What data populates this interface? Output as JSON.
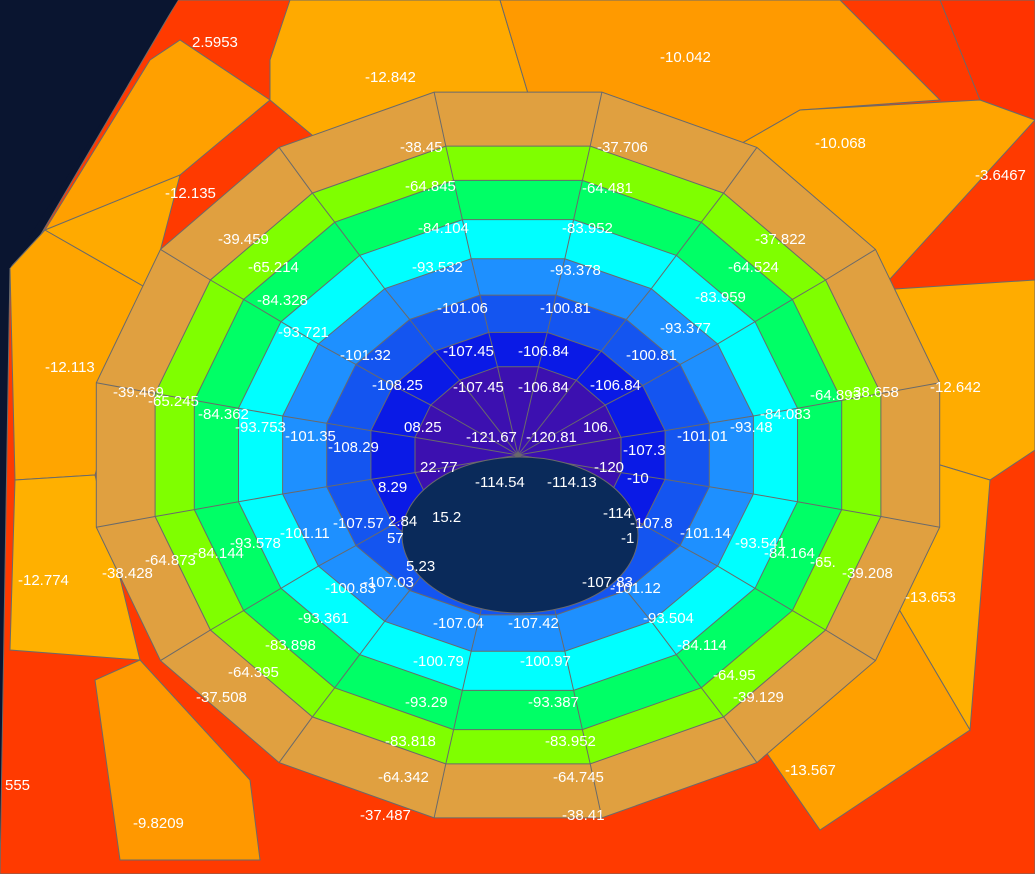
{
  "view": {
    "background_color": "#0a1530",
    "mesh_line_color": "#6a6a6a",
    "label_color": "#ffffff"
  },
  "rings": [
    {
      "id": "ring-1",
      "color": "#e0a040"
    },
    {
      "id": "ring-2",
      "color": "#7fff00"
    },
    {
      "id": "ring-3",
      "color": "#00ff66"
    },
    {
      "id": "ring-4",
      "color": "#00ffff"
    },
    {
      "id": "ring-5",
      "color": "#1e90ff"
    },
    {
      "id": "ring-6",
      "color": "#1455f0"
    },
    {
      "id": "ring-7",
      "color": "#0a1ae6"
    },
    {
      "id": "ring-8",
      "color": "#3c10b0"
    }
  ],
  "labels": [
    {
      "id": "v1",
      "text": "2.5953"
    },
    {
      "id": "v2",
      "text": "-12.842"
    },
    {
      "id": "v3",
      "text": "-10.042"
    },
    {
      "id": "v4",
      "text": "-10.068"
    },
    {
      "id": "v5",
      "text": "-3.6467"
    },
    {
      "id": "v6",
      "text": "-12.135"
    },
    {
      "id": "v7",
      "text": "-12.113"
    },
    {
      "id": "v8",
      "text": "-12.642"
    },
    {
      "id": "v9",
      "text": "-12.774"
    },
    {
      "id": "v10",
      "text": "-13.653"
    },
    {
      "id": "v11",
      "text": "-13.567"
    },
    {
      "id": "v12",
      "text": "-9.8209"
    },
    {
      "id": "v13",
      "text": "555"
    },
    {
      "id": "v14",
      "text": "-38.45"
    },
    {
      "id": "v15",
      "text": "-37.706"
    },
    {
      "id": "v16",
      "text": "-39.459"
    },
    {
      "id": "v17",
      "text": "-37.822"
    },
    {
      "id": "v18",
      "text": "-39.469"
    },
    {
      "id": "v19",
      "text": "-38.658"
    },
    {
      "id": "v20",
      "text": "-38.428"
    },
    {
      "id": "v21",
      "text": "-39.208"
    },
    {
      "id": "v22",
      "text": "-37.508"
    },
    {
      "id": "v23",
      "text": "-39.129"
    },
    {
      "id": "v24",
      "text": "-37.487"
    },
    {
      "id": "v25",
      "text": "-38.41"
    },
    {
      "id": "v26",
      "text": "-64.845"
    },
    {
      "id": "v27",
      "text": "-64.481"
    },
    {
      "id": "v28",
      "text": "-65.214"
    },
    {
      "id": "v29",
      "text": "-64.524"
    },
    {
      "id": "v30",
      "text": "-65.245"
    },
    {
      "id": "v31",
      "text": "-64.893"
    },
    {
      "id": "v32",
      "text": "-64.873"
    },
    {
      "id": "v33",
      "text": "-65."
    },
    {
      "id": "v34",
      "text": "-64.395"
    },
    {
      "id": "v35",
      "text": "-64.95"
    },
    {
      "id": "v36",
      "text": "-64.342"
    },
    {
      "id": "v37",
      "text": "-64.745"
    },
    {
      "id": "v38",
      "text": "-84.104"
    },
    {
      "id": "v39",
      "text": "-83.952"
    },
    {
      "id": "v40",
      "text": "-84.328"
    },
    {
      "id": "v41",
      "text": "-83.959"
    },
    {
      "id": "v42",
      "text": "-84.362"
    },
    {
      "id": "v43",
      "text": "-84.083"
    },
    {
      "id": "v44",
      "text": "-84.144"
    },
    {
      "id": "v45",
      "text": "-84.164"
    },
    {
      "id": "v46",
      "text": "-83.898"
    },
    {
      "id": "v47",
      "text": "-84.114"
    },
    {
      "id": "v48",
      "text": "-83.818"
    },
    {
      "id": "v49",
      "text": "-83.952"
    },
    {
      "id": "v50",
      "text": "-93.532"
    },
    {
      "id": "v51",
      "text": "-93.378"
    },
    {
      "id": "v52",
      "text": "-93.721"
    },
    {
      "id": "v53",
      "text": "-93.377"
    },
    {
      "id": "v54",
      "text": "-93.753"
    },
    {
      "id": "v55",
      "text": "-93.48"
    },
    {
      "id": "v56",
      "text": "-93.578"
    },
    {
      "id": "v57",
      "text": "-93.541"
    },
    {
      "id": "v58",
      "text": "-93.361"
    },
    {
      "id": "v59",
      "text": "-93.504"
    },
    {
      "id": "v60",
      "text": "-93.29"
    },
    {
      "id": "v61",
      "text": "-93.387"
    },
    {
      "id": "v62",
      "text": "-101.06"
    },
    {
      "id": "v63",
      "text": "-100.81"
    },
    {
      "id": "v64",
      "text": "-101.32"
    },
    {
      "id": "v65",
      "text": "-100.81"
    },
    {
      "id": "v66",
      "text": "-101.35"
    },
    {
      "id": "v67",
      "text": "-101.01"
    },
    {
      "id": "v68",
      "text": "-101.11"
    },
    {
      "id": "v69",
      "text": "-101.14"
    },
    {
      "id": "v70",
      "text": "-100.83"
    },
    {
      "id": "v71",
      "text": "-101.12"
    },
    {
      "id": "v72",
      "text": "-100.79"
    },
    {
      "id": "v73",
      "text": "-100.97"
    },
    {
      "id": "v74",
      "text": "-107.45"
    },
    {
      "id": "v75",
      "text": "-106.84"
    },
    {
      "id": "v76",
      "text": "-108.25"
    },
    {
      "id": "v77",
      "text": "-107.45"
    },
    {
      "id": "v78",
      "text": "-106.84"
    },
    {
      "id": "v79",
      "text": "-106.84"
    },
    {
      "id": "v80",
      "text": "-108.29"
    },
    {
      "id": "v81",
      "text": "-107.3"
    },
    {
      "id": "v82",
      "text": "-107.57"
    },
    {
      "id": "v83",
      "text": "-107.8"
    },
    {
      "id": "v84",
      "text": "-107.03"
    },
    {
      "id": "v85",
      "text": "-107.83"
    },
    {
      "id": "v86",
      "text": "-107.04"
    },
    {
      "id": "v87",
      "text": "-107.42"
    },
    {
      "id": "v88",
      "text": "-121.67"
    },
    {
      "id": "v89",
      "text": "-120.81"
    },
    {
      "id": "v90",
      "text": "-114.54"
    },
    {
      "id": "v91",
      "text": "-114.13"
    },
    {
      "id": "v92",
      "text": "08.25"
    },
    {
      "id": "v93",
      "text": "106."
    },
    {
      "id": "v94",
      "text": "8.29"
    },
    {
      "id": "v95",
      "text": "22.77"
    },
    {
      "id": "v96",
      "text": "-120"
    },
    {
      "id": "v97",
      "text": "-10"
    },
    {
      "id": "v98",
      "text": "2.84"
    },
    {
      "id": "v99",
      "text": "15.2"
    },
    {
      "id": "v100",
      "text": "57"
    },
    {
      "id": "v101",
      "text": "-114"
    },
    {
      "id": "v102",
      "text": "5.23"
    },
    {
      "id": "v103",
      "text": "-1"
    }
  ]
}
